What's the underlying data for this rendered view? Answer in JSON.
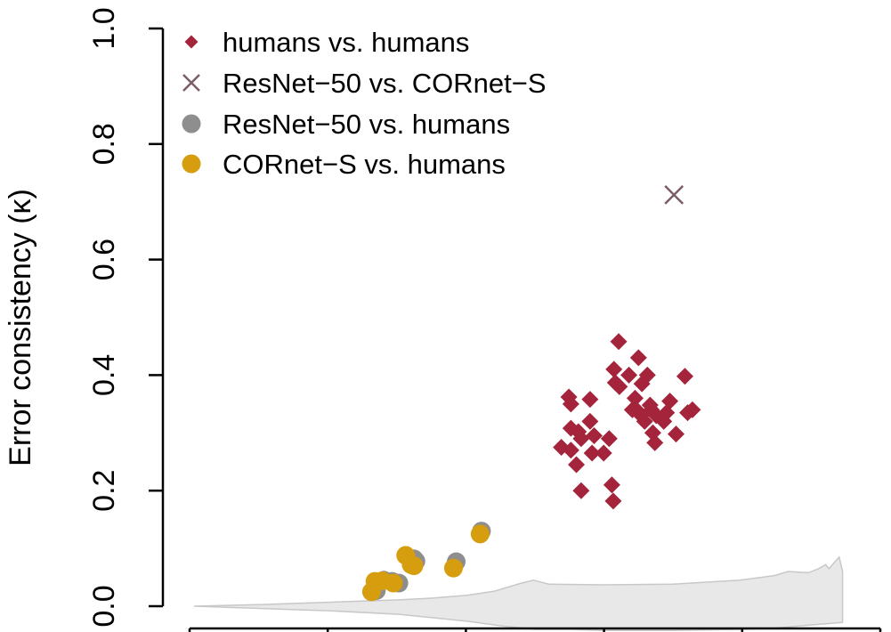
{
  "colors": {
    "humans_vs_humans": "#A4243B",
    "resnet_vs_cornet": "#7D5C6A",
    "resnet_vs_humans": "#8E8E8E",
    "cornet_vs_humans": "#D69E0E",
    "chance_region_fill": "#E8E8E8",
    "chance_region_stroke": "#C8C8C8"
  },
  "legend": {
    "placement": "top-left",
    "items": [
      {
        "label": "humans vs. humans",
        "icon": "diamond-marker-icon",
        "color_key": "humans_vs_humans"
      },
      {
        "label": "ResNet−50 vs. CORnet−S",
        "icon": "cross-marker-icon",
        "color_key": "resnet_vs_cornet"
      },
      {
        "label": "ResNet−50 vs. humans",
        "icon": "circle-marker-icon",
        "color_key": "resnet_vs_humans"
      },
      {
        "label": "CORnet−S vs. humans",
        "icon": "circle-marker-icon",
        "color_key": "cornet_vs_humans"
      }
    ]
  },
  "chart_data": {
    "type": "scatter",
    "title": "",
    "xlabel": "",
    "ylabel": "Error consistency (κ)",
    "ylim": [
      0.0,
      1.0
    ],
    "xlim": [
      0.0,
      1.0
    ],
    "y_ticks": [
      "0.0",
      "0.2",
      "0.4",
      "0.6",
      "0.8",
      "1.0"
    ],
    "x_tick_count": 6,
    "grid": false,
    "series": [
      {
        "name": "humans vs. humans",
        "marker": "diamond",
        "points": [
          [
            0.538,
            0.275
          ],
          [
            0.552,
            0.27
          ],
          [
            0.56,
            0.245
          ],
          [
            0.567,
            0.2
          ],
          [
            0.549,
            0.362
          ],
          [
            0.552,
            0.35
          ],
          [
            0.552,
            0.308
          ],
          [
            0.563,
            0.302
          ],
          [
            0.567,
            0.29
          ],
          [
            0.58,
            0.32
          ],
          [
            0.58,
            0.358
          ],
          [
            0.586,
            0.295
          ],
          [
            0.583,
            0.265
          ],
          [
            0.6,
            0.265
          ],
          [
            0.608,
            0.29
          ],
          [
            0.612,
            0.21
          ],
          [
            0.614,
            0.182
          ],
          [
            0.615,
            0.41
          ],
          [
            0.617,
            0.387
          ],
          [
            0.623,
            0.38
          ],
          [
            0.622,
            0.458
          ],
          [
            0.637,
            0.4
          ],
          [
            0.642,
            0.34
          ],
          [
            0.648,
            0.34
          ],
          [
            0.651,
            0.43
          ],
          [
            0.656,
            0.385
          ],
          [
            0.664,
            0.4
          ],
          [
            0.655,
            0.33
          ],
          [
            0.66,
            0.32
          ],
          [
            0.668,
            0.348
          ],
          [
            0.672,
            0.3
          ],
          [
            0.675,
            0.283
          ],
          [
            0.677,
            0.33
          ],
          [
            0.688,
            0.32
          ],
          [
            0.692,
            0.335
          ],
          [
            0.697,
            0.355
          ],
          [
            0.706,
            0.298
          ],
          [
            0.719,
            0.398
          ],
          [
            0.723,
            0.335
          ],
          [
            0.73,
            0.34
          ],
          [
            0.646,
            0.36
          ],
          [
            0.67,
            0.34
          ]
        ]
      },
      {
        "name": "ResNet−50 vs. CORnet−S",
        "marker": "cross",
        "points": [
          [
            0.703,
            0.712
          ]
        ]
      },
      {
        "name": "ResNet−50 vs. humans",
        "marker": "circle",
        "points": [
          [
            0.267,
            0.027
          ],
          [
            0.278,
            0.045
          ],
          [
            0.29,
            0.043
          ],
          [
            0.3,
            0.04
          ],
          [
            0.318,
            0.075
          ],
          [
            0.322,
            0.082
          ],
          [
            0.325,
            0.078
          ],
          [
            0.384,
            0.077
          ],
          [
            0.421,
            0.13
          ]
        ]
      },
      {
        "name": "CORnet−S vs. humans",
        "marker": "circle",
        "points": [
          [
            0.26,
            0.025
          ],
          [
            0.265,
            0.043
          ],
          [
            0.276,
            0.044
          ],
          [
            0.292,
            0.04
          ],
          [
            0.31,
            0.088
          ],
          [
            0.318,
            0.072
          ],
          [
            0.322,
            0.07
          ],
          [
            0.38,
            0.066
          ],
          [
            0.419,
            0.125
          ]
        ]
      }
    ],
    "chance_region": {
      "upper": [
        [
          0.0,
          0.0
        ],
        [
          0.1,
          0.003
        ],
        [
          0.2,
          0.007
        ],
        [
          0.3,
          0.011
        ],
        [
          0.35,
          0.014
        ],
        [
          0.4,
          0.019
        ],
        [
          0.44,
          0.026
        ],
        [
          0.48,
          0.04
        ],
        [
          0.497,
          0.045
        ],
        [
          0.52,
          0.038
        ],
        [
          0.6,
          0.037
        ],
        [
          0.7,
          0.038
        ],
        [
          0.8,
          0.045
        ],
        [
          0.85,
          0.053
        ],
        [
          0.87,
          0.06
        ],
        [
          0.9,
          0.058
        ],
        [
          0.915,
          0.065
        ],
        [
          0.925,
          0.072
        ],
        [
          0.93,
          0.065
        ],
        [
          0.945,
          0.085
        ],
        [
          0.95,
          0.06
        ]
      ],
      "lower": [
        [
          0.95,
          -0.028
        ],
        [
          0.93,
          -0.03
        ],
        [
          0.9,
          -0.033
        ],
        [
          0.85,
          -0.038
        ],
        [
          0.8,
          -0.04
        ],
        [
          0.7,
          -0.042
        ],
        [
          0.6,
          -0.042
        ],
        [
          0.55,
          -0.04
        ],
        [
          0.5,
          -0.04
        ],
        [
          0.45,
          -0.034
        ],
        [
          0.4,
          -0.026
        ],
        [
          0.35,
          -0.02
        ],
        [
          0.3,
          -0.014
        ],
        [
          0.2,
          -0.008
        ],
        [
          0.1,
          -0.004
        ],
        [
          0.0,
          0.0
        ]
      ]
    }
  }
}
